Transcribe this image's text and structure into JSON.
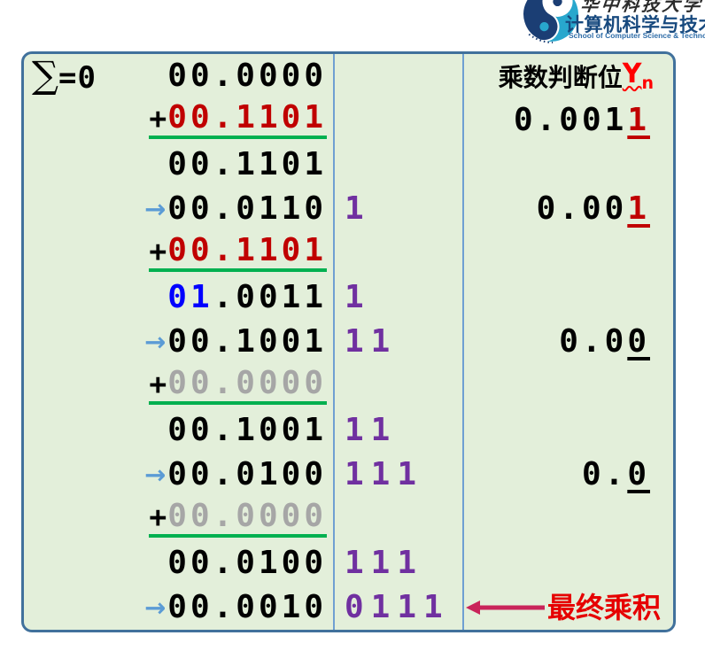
{
  "logo": {
    "calligraphy": "华中科技大学",
    "school_cn": "计算机科学与技术学",
    "school_en": "School of Computer Science & Technology,"
  },
  "table": {
    "header": {
      "label": "乘数判断位",
      "var": "Y",
      "sub": "n"
    },
    "final_label": "最终乘积",
    "sum_label": {
      "sym": "∑",
      "eq": "=0"
    },
    "rows": [
      {
        "sum": true,
        "prefix": "",
        "segments": [
          {
            "t": "00.0000",
            "c": "black"
          }
        ],
        "underline": false,
        "shift": "",
        "right": {
          "kind": "header"
        }
      },
      {
        "sum": false,
        "prefix": "+",
        "segments": [
          {
            "t": "00.1101",
            "c": "red"
          }
        ],
        "underline": true,
        "shift": "",
        "right": {
          "kind": "value",
          "main": "0.001",
          "last": "1",
          "lastColor": "red"
        }
      },
      {
        "sum": false,
        "prefix": "",
        "segments": [
          {
            "t": "00.1101",
            "c": "black"
          }
        ],
        "underline": false,
        "shift": "",
        "right": null
      },
      {
        "sum": false,
        "prefix": "→",
        "segments": [
          {
            "t": "00.0110",
            "c": "black"
          }
        ],
        "underline": false,
        "shift": "1",
        "right": {
          "kind": "value",
          "main": "0.00",
          "last": "1",
          "lastColor": "red"
        }
      },
      {
        "sum": false,
        "prefix": "+",
        "segments": [
          {
            "t": "00.1101",
            "c": "red"
          }
        ],
        "underline": true,
        "shift": "",
        "right": null
      },
      {
        "sum": false,
        "prefix": "",
        "segments": [
          {
            "t": "01",
            "c": "blue"
          },
          {
            "t": ".0011",
            "c": "black"
          }
        ],
        "underline": false,
        "shift": "1",
        "right": null
      },
      {
        "sum": false,
        "prefix": "→",
        "segments": [
          {
            "t": "00.1001",
            "c": "black"
          }
        ],
        "underline": false,
        "shift": "11",
        "right": {
          "kind": "value",
          "main": "0.0",
          "last": "0",
          "lastColor": "black"
        }
      },
      {
        "sum": false,
        "prefix": "+",
        "segments": [
          {
            "t": "00.0000",
            "c": "gray"
          }
        ],
        "underline": true,
        "shift": "",
        "right": null
      },
      {
        "sum": false,
        "prefix": "",
        "segments": [
          {
            "t": "00.1001",
            "c": "black"
          }
        ],
        "underline": false,
        "shift": "11",
        "right": null
      },
      {
        "sum": false,
        "prefix": "→",
        "segments": [
          {
            "t": "00.0100",
            "c": "black"
          }
        ],
        "underline": false,
        "shift": "111",
        "right": {
          "kind": "value",
          "main": "0.",
          "last": "0",
          "lastColor": "black"
        }
      },
      {
        "sum": false,
        "prefix": "+",
        "segments": [
          {
            "t": "00.0000",
            "c": "gray"
          }
        ],
        "underline": true,
        "shift": "",
        "right": null
      },
      {
        "sum": false,
        "prefix": "",
        "segments": [
          {
            "t": "00.0100",
            "c": "black"
          }
        ],
        "underline": false,
        "shift": "111",
        "right": null
      },
      {
        "sum": false,
        "prefix": "→",
        "segments": [
          {
            "t": "00.0010",
            "c": "black"
          }
        ],
        "underline": false,
        "shift": "0111",
        "right": {
          "kind": "final"
        }
      }
    ]
  },
  "colors": {
    "black": "#000000",
    "red": "#C00000",
    "blue": "#0000FF",
    "gray": "#A6A6A6",
    "purple": "#7030A0",
    "green_underline": "#00B050",
    "shift_arrow": "#5B9BD5",
    "table_bg": "#E3EFDA",
    "table_border": "#41719C",
    "divider": "#6FA0D2",
    "final_arrow": "#C9245A",
    "final_text": "#E60000",
    "header_var_red": "#FF0000",
    "school_blue": "#17497E",
    "school_en_blue": "#2F6DA8",
    "logo_navy": "#1B3E74",
    "logo_teal": "#28A7CD"
  }
}
